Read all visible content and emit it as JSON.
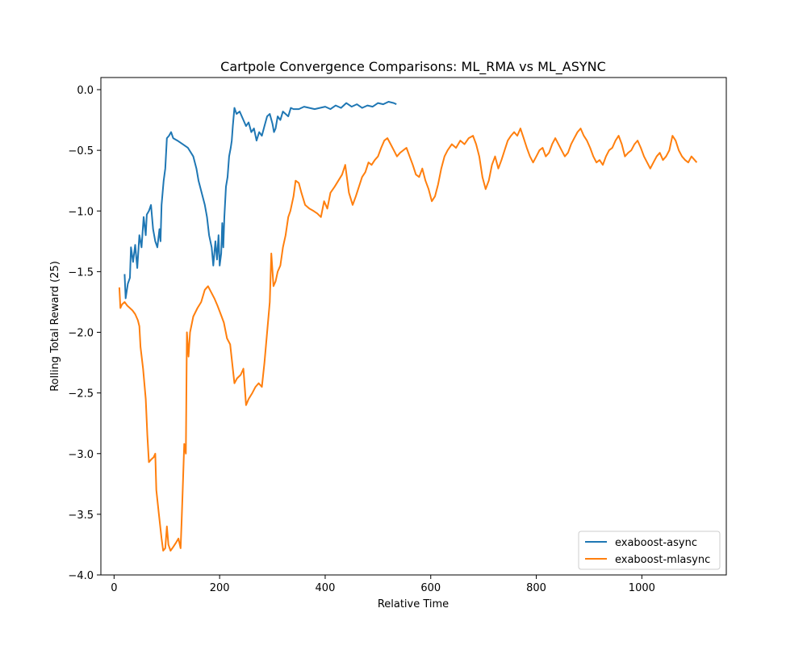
{
  "chart_data": {
    "type": "line",
    "title": "Cartpole Convergence Comparisons: ML_RMA vs ML_ASYNC",
    "xlabel": "Relative Time",
    "ylabel": "Rolling Total Reward (25)",
    "xlim": [
      -25,
      1160
    ],
    "ylim": [
      -4.0,
      0.1
    ],
    "xticks": [
      0,
      200,
      400,
      600,
      800,
      1000
    ],
    "yticks": [
      0.0,
      -0.5,
      -1.0,
      -1.5,
      -2.0,
      -2.5,
      -3.0,
      -3.5,
      -4.0
    ],
    "xtick_labels": [
      "0",
      "200",
      "400",
      "600",
      "800",
      "1000"
    ],
    "ytick_labels": [
      "0.0",
      "−0.5",
      "−1.0",
      "−1.5",
      "−2.0",
      "−2.5",
      "−3.0",
      "−3.5",
      "−4.0"
    ],
    "legend_position": "lower-right",
    "grid": false,
    "series": [
      {
        "name": "exaboost-async",
        "color": "#1f77b4",
        "points": [
          [
            20,
            -1.52
          ],
          [
            22,
            -1.72
          ],
          [
            26,
            -1.6
          ],
          [
            30,
            -1.55
          ],
          [
            32,
            -1.3
          ],
          [
            36,
            -1.42
          ],
          [
            40,
            -1.28
          ],
          [
            44,
            -1.47
          ],
          [
            48,
            -1.2
          ],
          [
            52,
            -1.3
          ],
          [
            56,
            -1.05
          ],
          [
            60,
            -1.2
          ],
          [
            62,
            -1.03
          ],
          [
            66,
            -1.0
          ],
          [
            70,
            -0.95
          ],
          [
            74,
            -1.15
          ],
          [
            78,
            -1.25
          ],
          [
            82,
            -1.3
          ],
          [
            86,
            -1.15
          ],
          [
            88,
            -1.25
          ],
          [
            90,
            -0.95
          ],
          [
            94,
            -0.75
          ],
          [
            97,
            -0.65
          ],
          [
            100,
            -0.4
          ],
          [
            104,
            -0.38
          ],
          [
            108,
            -0.35
          ],
          [
            112,
            -0.4
          ],
          [
            120,
            -0.42
          ],
          [
            130,
            -0.45
          ],
          [
            140,
            -0.48
          ],
          [
            150,
            -0.55
          ],
          [
            156,
            -0.65
          ],
          [
            160,
            -0.75
          ],
          [
            166,
            -0.85
          ],
          [
            172,
            -0.95
          ],
          [
            176,
            -1.05
          ],
          [
            180,
            -1.2
          ],
          [
            185,
            -1.3
          ],
          [
            188,
            -1.45
          ],
          [
            192,
            -1.25
          ],
          [
            195,
            -1.4
          ],
          [
            198,
            -1.2
          ],
          [
            200,
            -1.45
          ],
          [
            203,
            -1.35
          ],
          [
            205,
            -1.1
          ],
          [
            207,
            -1.3
          ],
          [
            209,
            -1.05
          ],
          [
            212,
            -0.8
          ],
          [
            215,
            -0.72
          ],
          [
            218,
            -0.55
          ],
          [
            221,
            -0.48
          ],
          [
            223,
            -0.42
          ],
          [
            225,
            -0.3
          ],
          [
            228,
            -0.15
          ],
          [
            232,
            -0.2
          ],
          [
            238,
            -0.18
          ],
          [
            245,
            -0.25
          ],
          [
            250,
            -0.3
          ],
          [
            255,
            -0.27
          ],
          [
            260,
            -0.35
          ],
          [
            265,
            -0.32
          ],
          [
            270,
            -0.42
          ],
          [
            275,
            -0.35
          ],
          [
            280,
            -0.38
          ],
          [
            285,
            -0.3
          ],
          [
            290,
            -0.22
          ],
          [
            295,
            -0.2
          ],
          [
            300,
            -0.28
          ],
          [
            303,
            -0.35
          ],
          [
            306,
            -0.32
          ],
          [
            310,
            -0.22
          ],
          [
            315,
            -0.25
          ],
          [
            320,
            -0.18
          ],
          [
            325,
            -0.2
          ],
          [
            330,
            -0.22
          ],
          [
            335,
            -0.15
          ],
          [
            340,
            -0.16
          ],
          [
            350,
            -0.16
          ],
          [
            360,
            -0.14
          ],
          [
            370,
            -0.15
          ],
          [
            380,
            -0.16
          ],
          [
            390,
            -0.15
          ],
          [
            400,
            -0.14
          ],
          [
            410,
            -0.16
          ],
          [
            420,
            -0.13
          ],
          [
            430,
            -0.15
          ],
          [
            440,
            -0.11
          ],
          [
            450,
            -0.14
          ],
          [
            460,
            -0.12
          ],
          [
            470,
            -0.15
          ],
          [
            480,
            -0.13
          ],
          [
            490,
            -0.14
          ],
          [
            500,
            -0.11
          ],
          [
            510,
            -0.12
          ],
          [
            520,
            -0.1
          ],
          [
            530,
            -0.11
          ],
          [
            535,
            -0.12
          ]
        ]
      },
      {
        "name": "exaboost-mlasync",
        "color": "#ff7f0e",
        "points": [
          [
            10,
            -1.63
          ],
          [
            12,
            -1.8
          ],
          [
            15,
            -1.77
          ],
          [
            20,
            -1.75
          ],
          [
            25,
            -1.78
          ],
          [
            30,
            -1.8
          ],
          [
            35,
            -1.82
          ],
          [
            40,
            -1.85
          ],
          [
            45,
            -1.9
          ],
          [
            48,
            -1.95
          ],
          [
            50,
            -2.12
          ],
          [
            55,
            -2.3
          ],
          [
            60,
            -2.55
          ],
          [
            63,
            -2.85
          ],
          [
            66,
            -3.07
          ],
          [
            70,
            -3.05
          ],
          [
            75,
            -3.03
          ],
          [
            78,
            -3.0
          ],
          [
            80,
            -3.3
          ],
          [
            85,
            -3.5
          ],
          [
            90,
            -3.7
          ],
          [
            93,
            -3.8
          ],
          [
            97,
            -3.78
          ],
          [
            100,
            -3.6
          ],
          [
            103,
            -3.75
          ],
          [
            107,
            -3.8
          ],
          [
            112,
            -3.77
          ],
          [
            118,
            -3.73
          ],
          [
            122,
            -3.7
          ],
          [
            126,
            -3.78
          ],
          [
            128,
            -3.55
          ],
          [
            130,
            -3.3
          ],
          [
            133,
            -2.92
          ],
          [
            136,
            -3.0
          ],
          [
            138,
            -2.0
          ],
          [
            141,
            -2.2
          ],
          [
            144,
            -2.0
          ],
          [
            150,
            -1.87
          ],
          [
            158,
            -1.8
          ],
          [
            165,
            -1.75
          ],
          [
            172,
            -1.65
          ],
          [
            178,
            -1.62
          ],
          [
            184,
            -1.67
          ],
          [
            190,
            -1.72
          ],
          [
            196,
            -1.78
          ],
          [
            202,
            -1.85
          ],
          [
            208,
            -1.92
          ],
          [
            214,
            -2.05
          ],
          [
            220,
            -2.1
          ],
          [
            225,
            -2.3
          ],
          [
            228,
            -2.42
          ],
          [
            233,
            -2.38
          ],
          [
            240,
            -2.35
          ],
          [
            245,
            -2.3
          ],
          [
            250,
            -2.6
          ],
          [
            255,
            -2.55
          ],
          [
            262,
            -2.5
          ],
          [
            268,
            -2.45
          ],
          [
            274,
            -2.42
          ],
          [
            280,
            -2.45
          ],
          [
            285,
            -2.25
          ],
          [
            290,
            -2.0
          ],
          [
            295,
            -1.75
          ],
          [
            298,
            -1.35
          ],
          [
            302,
            -1.62
          ],
          [
            306,
            -1.58
          ],
          [
            310,
            -1.5
          ],
          [
            315,
            -1.45
          ],
          [
            320,
            -1.3
          ],
          [
            325,
            -1.2
          ],
          [
            330,
            -1.05
          ],
          [
            334,
            -1.0
          ],
          [
            340,
            -0.88
          ],
          [
            344,
            -0.75
          ],
          [
            350,
            -0.77
          ],
          [
            355,
            -0.85
          ],
          [
            362,
            -0.95
          ],
          [
            370,
            -0.98
          ],
          [
            378,
            -1.0
          ],
          [
            385,
            -1.02
          ],
          [
            392,
            -1.05
          ],
          [
            398,
            -0.92
          ],
          [
            404,
            -0.98
          ],
          [
            410,
            -0.85
          ],
          [
            418,
            -0.8
          ],
          [
            425,
            -0.75
          ],
          [
            432,
            -0.7
          ],
          [
            438,
            -0.62
          ],
          [
            445,
            -0.85
          ],
          [
            452,
            -0.95
          ],
          [
            458,
            -0.88
          ],
          [
            464,
            -0.8
          ],
          [
            470,
            -0.72
          ],
          [
            476,
            -0.68
          ],
          [
            482,
            -0.6
          ],
          [
            488,
            -0.62
          ],
          [
            494,
            -0.58
          ],
          [
            500,
            -0.55
          ],
          [
            506,
            -0.48
          ],
          [
            512,
            -0.42
          ],
          [
            518,
            -0.4
          ],
          [
            524,
            -0.45
          ],
          [
            530,
            -0.5
          ],
          [
            536,
            -0.55
          ],
          [
            542,
            -0.52
          ],
          [
            548,
            -0.5
          ],
          [
            554,
            -0.48
          ],
          [
            560,
            -0.55
          ],
          [
            566,
            -0.62
          ],
          [
            572,
            -0.7
          ],
          [
            578,
            -0.72
          ],
          [
            584,
            -0.65
          ],
          [
            590,
            -0.75
          ],
          [
            596,
            -0.82
          ],
          [
            602,
            -0.92
          ],
          [
            608,
            -0.88
          ],
          [
            614,
            -0.78
          ],
          [
            620,
            -0.65
          ],
          [
            626,
            -0.55
          ],
          [
            632,
            -0.5
          ],
          [
            640,
            -0.45
          ],
          [
            648,
            -0.48
          ],
          [
            656,
            -0.42
          ],
          [
            664,
            -0.45
          ],
          [
            672,
            -0.4
          ],
          [
            680,
            -0.38
          ],
          [
            686,
            -0.45
          ],
          [
            692,
            -0.55
          ],
          [
            698,
            -0.72
          ],
          [
            704,
            -0.82
          ],
          [
            710,
            -0.75
          ],
          [
            716,
            -0.62
          ],
          [
            722,
            -0.55
          ],
          [
            728,
            -0.65
          ],
          [
            734,
            -0.58
          ],
          [
            740,
            -0.5
          ],
          [
            746,
            -0.42
          ],
          [
            752,
            -0.38
          ],
          [
            758,
            -0.35
          ],
          [
            764,
            -0.38
          ],
          [
            770,
            -0.32
          ],
          [
            776,
            -0.4
          ],
          [
            782,
            -0.48
          ],
          [
            788,
            -0.55
          ],
          [
            794,
            -0.6
          ],
          [
            800,
            -0.55
          ],
          [
            806,
            -0.5
          ],
          [
            812,
            -0.48
          ],
          [
            818,
            -0.55
          ],
          [
            824,
            -0.52
          ],
          [
            830,
            -0.45
          ],
          [
            836,
            -0.4
          ],
          [
            842,
            -0.45
          ],
          [
            848,
            -0.5
          ],
          [
            854,
            -0.55
          ],
          [
            860,
            -0.52
          ],
          [
            866,
            -0.45
          ],
          [
            872,
            -0.4
          ],
          [
            878,
            -0.35
          ],
          [
            884,
            -0.32
          ],
          [
            890,
            -0.38
          ],
          [
            896,
            -0.42
          ],
          [
            902,
            -0.48
          ],
          [
            908,
            -0.55
          ],
          [
            914,
            -0.6
          ],
          [
            920,
            -0.58
          ],
          [
            926,
            -0.62
          ],
          [
            932,
            -0.55
          ],
          [
            938,
            -0.5
          ],
          [
            944,
            -0.48
          ],
          [
            950,
            -0.42
          ],
          [
            956,
            -0.38
          ],
          [
            962,
            -0.45
          ],
          [
            968,
            -0.55
          ],
          [
            974,
            -0.52
          ],
          [
            980,
            -0.5
          ],
          [
            986,
            -0.45
          ],
          [
            992,
            -0.42
          ],
          [
            998,
            -0.48
          ],
          [
            1004,
            -0.55
          ],
          [
            1010,
            -0.6
          ],
          [
            1016,
            -0.65
          ],
          [
            1022,
            -0.6
          ],
          [
            1028,
            -0.55
          ],
          [
            1034,
            -0.52
          ],
          [
            1040,
            -0.58
          ],
          [
            1046,
            -0.55
          ],
          [
            1052,
            -0.5
          ],
          [
            1058,
            -0.38
          ],
          [
            1064,
            -0.42
          ],
          [
            1070,
            -0.5
          ],
          [
            1076,
            -0.55
          ],
          [
            1082,
            -0.58
          ],
          [
            1088,
            -0.6
          ],
          [
            1094,
            -0.55
          ],
          [
            1100,
            -0.58
          ],
          [
            1104,
            -0.6
          ]
        ]
      }
    ]
  }
}
